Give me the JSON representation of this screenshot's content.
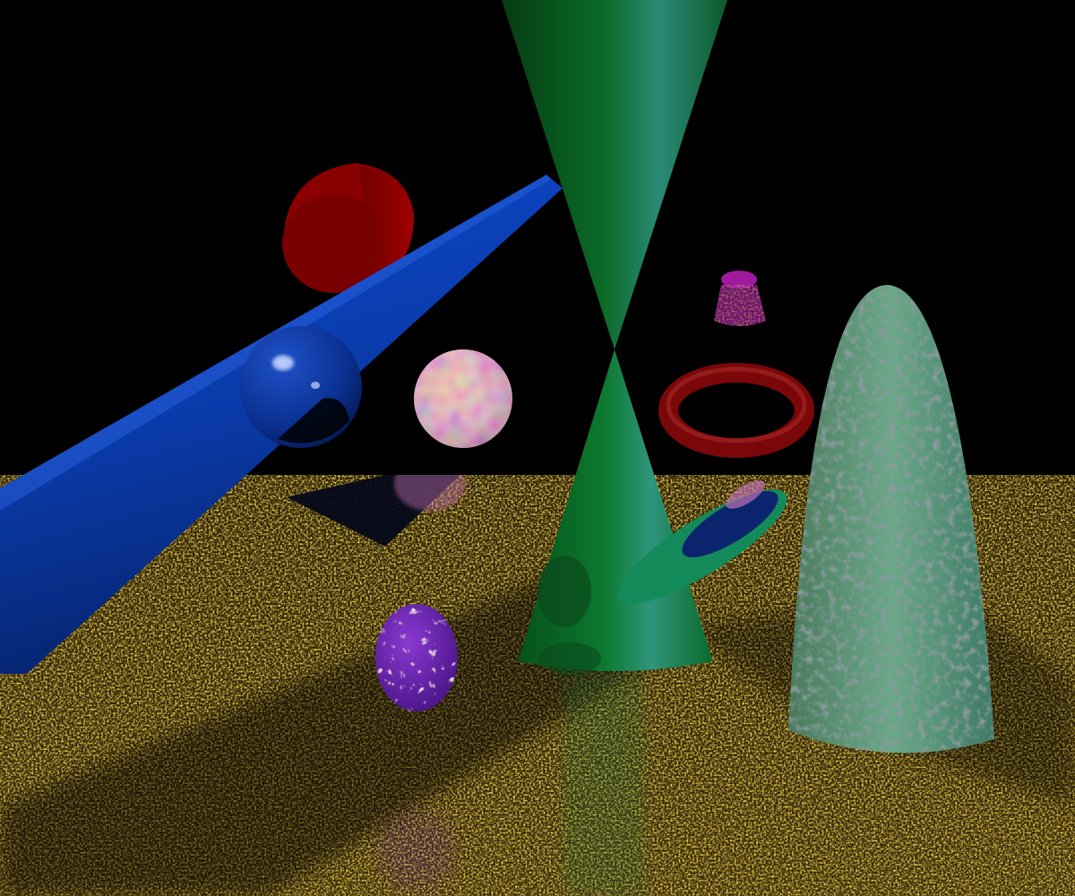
{
  "scene": {
    "background_color": "#000000",
    "floor_colors": [
      "#3a2a08",
      "#6b5010",
      "#b08a18",
      "#d8b02a"
    ],
    "objects": [
      {
        "name": "blue-cylinder",
        "color": "#0a3aa8"
      },
      {
        "name": "blue-sphere",
        "color": "#0c3a9c"
      },
      {
        "name": "red-cylinder",
        "color": "#a00000"
      },
      {
        "name": "green-double-cone",
        "color": "#0b6b26"
      },
      {
        "name": "patchwork-sphere",
        "color": "#c070b0"
      },
      {
        "name": "magenta-small-cylinder",
        "color": "#a01aa0"
      },
      {
        "name": "red-torus",
        "color": "#7a0808"
      },
      {
        "name": "green-speckled-paraboloid",
        "color": "#3e8a74"
      },
      {
        "name": "purple-marble-egg",
        "color": "#6a20b0"
      },
      {
        "name": "green-disc",
        "color": "#138a5a"
      }
    ]
  }
}
